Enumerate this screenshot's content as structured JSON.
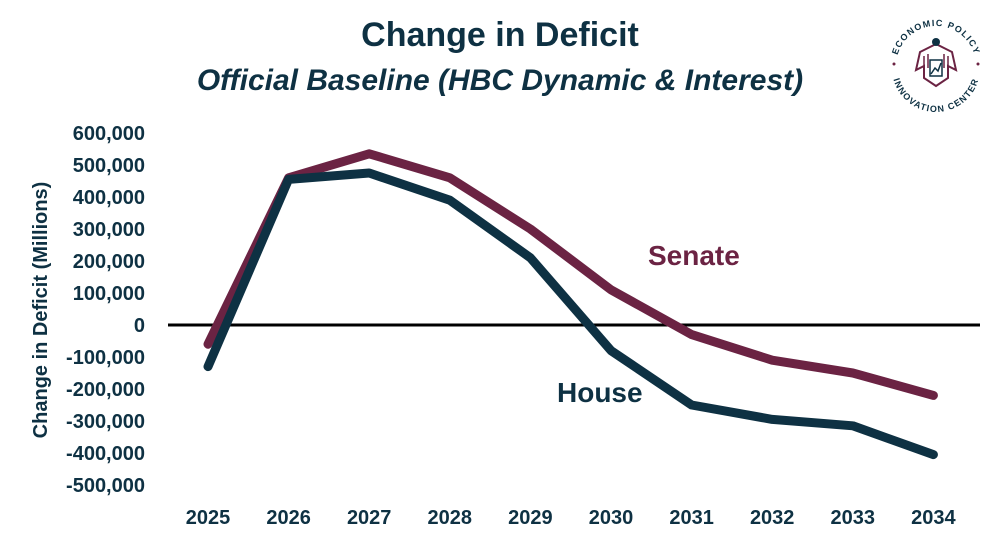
{
  "chart_data": {
    "type": "line",
    "title": "Change in Deficit",
    "subtitle": "Official Baseline (HBC Dynamic & Interest)",
    "ylabel": "Change in Deficit (Millions)",
    "xlabel": "",
    "categories": [
      "2025",
      "2026",
      "2027",
      "2028",
      "2029",
      "2030",
      "2031",
      "2032",
      "2033",
      "2034"
    ],
    "ylim": [
      -500000,
      600000
    ],
    "yticks": [
      600000,
      500000,
      400000,
      300000,
      200000,
      100000,
      0,
      -100000,
      -200000,
      -300000,
      -400000,
      -500000
    ],
    "ytick_labels": [
      "600,000",
      "500,000",
      "400,000",
      "300,000",
      "200,000",
      "100,000",
      "0",
      "-100,000",
      "-200,000",
      "-300,000",
      "-400,000",
      "-500,000"
    ],
    "grid": false,
    "series": [
      {
        "name": "Senate",
        "color": "#6b2343",
        "values": [
          -60000,
          460000,
          535000,
          460000,
          300000,
          110000,
          -30000,
          -110000,
          -150000,
          -220000
        ]
      },
      {
        "name": "House",
        "color": "#0e3143",
        "values": [
          -130000,
          455000,
          475000,
          390000,
          210000,
          -80000,
          -250000,
          -295000,
          -315000,
          -405000
        ]
      }
    ]
  },
  "colors": {
    "text": "#0e3143",
    "zero_line": "#000000"
  },
  "logo": {
    "text_top": "ECONOMIC POLICY",
    "text_bottom": "INNOVATION CENTER"
  }
}
